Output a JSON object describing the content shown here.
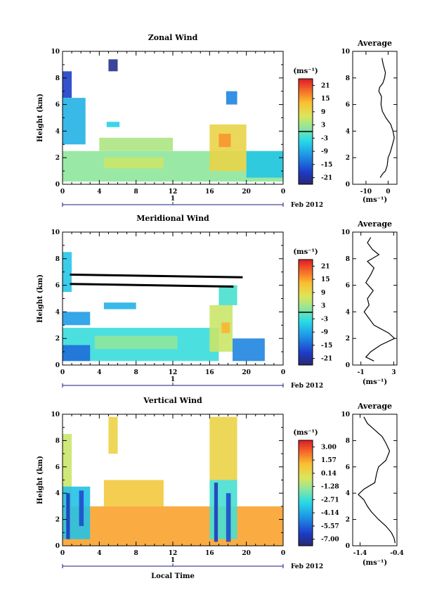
{
  "chart_data": [
    {
      "type": "heatmap",
      "title": "Zonal Wind",
      "ylabel": "Height (km)",
      "ylim": [
        0,
        10
      ],
      "yticks": [
        "0",
        "2",
        "4",
        "6",
        "8",
        "10"
      ],
      "xlim": [
        0,
        24
      ],
      "xticks": [
        "0",
        "4",
        "8",
        "12",
        "16",
        "20",
        "0"
      ],
      "date_marker": "1",
      "date_label": "Feb 2012",
      "colorbar": {
        "unit": "(ms⁻¹)",
        "ticks": [
          "21",
          "15",
          "9",
          "3",
          "-3",
          "-9",
          "-15",
          "-21"
        ],
        "range": [
          -24,
          24
        ],
        "zero_line": true
      },
      "patches": [
        {
          "x0": 0.0,
          "x1": 1.0,
          "y0": 6.5,
          "y1": 8.5,
          "v": -18
        },
        {
          "x0": 0.0,
          "x1": 2.5,
          "y0": 3.0,
          "y1": 6.5,
          "v": -8
        },
        {
          "x0": 0.0,
          "x1": 24.0,
          "y0": 0.2,
          "y1": 2.5,
          "v": 2
        },
        {
          "x0": 4.0,
          "x1": 12.0,
          "y0": 2.5,
          "y1": 3.5,
          "v": 4
        },
        {
          "x0": 5.0,
          "x1": 6.0,
          "y0": 8.5,
          "y1": 9.4,
          "v": -22
        },
        {
          "x0": 4.8,
          "x1": 6.2,
          "y0": 4.3,
          "y1": 4.7,
          "v": -5
        },
        {
          "x0": 16.0,
          "x1": 20.0,
          "y0": 1.0,
          "y1": 4.5,
          "v": 10
        },
        {
          "x0": 17.0,
          "x1": 18.3,
          "y0": 2.8,
          "y1": 3.8,
          "v": 16
        },
        {
          "x0": 17.8,
          "x1": 19.0,
          "y0": 6.0,
          "y1": 7.0,
          "v": -12
        },
        {
          "x0": 20.0,
          "x1": 24.0,
          "y0": 0.5,
          "y1": 2.5,
          "v": -6
        },
        {
          "x0": 4.5,
          "x1": 11.0,
          "y0": 1.2,
          "y1": 2.0,
          "v": 6
        }
      ]
    },
    {
      "type": "line",
      "title": "Average",
      "xlabel": "(ms⁻¹)",
      "xticks": [
        "-10",
        "0"
      ],
      "xlim": [
        -16,
        4
      ],
      "ylim": [
        0,
        10
      ],
      "yticks": [
        "0",
        "2",
        "4",
        "6",
        "8",
        "10"
      ],
      "x": [
        -3.6,
        -2.4,
        -1.2,
        -0.4,
        0.0,
        1.0,
        2.0,
        2.8,
        2.2,
        1.2,
        -1.0,
        -2.6,
        -3.2,
        -3.0,
        -4.2,
        -3.8,
        -2.4,
        -1.6,
        -1.2,
        -2.2,
        -2.8
      ],
      "y": [
        0.5,
        0.8,
        1.0,
        1.4,
        2.0,
        2.4,
        3.0,
        3.5,
        4.0,
        4.5,
        5.0,
        5.5,
        6.0,
        6.6,
        7.0,
        7.3,
        7.6,
        8.0,
        8.4,
        9.0,
        9.5
      ]
    },
    {
      "type": "heatmap",
      "title": "Meridional Wind",
      "ylabel": "Height (km)",
      "ylim": [
        0,
        10
      ],
      "yticks": [
        "0",
        "2",
        "4",
        "6",
        "8",
        "10"
      ],
      "xlim": [
        0,
        24
      ],
      "xticks": [
        "0",
        "4",
        "8",
        "12",
        "16",
        "20",
        "0"
      ],
      "date_marker": "1",
      "date_label": "Feb 2012",
      "colorbar": {
        "unit": "(ms⁻¹)",
        "ticks": [
          "21",
          "15",
          "9",
          "3",
          "-3",
          "-9",
          "-15",
          "-21"
        ],
        "range": [
          -24,
          24
        ],
        "zero_line": true
      },
      "patches": [
        {
          "x0": 0.0,
          "x1": 1.0,
          "y0": 5.5,
          "y1": 8.5,
          "v": -6
        },
        {
          "x0": 0.0,
          "x1": 3.0,
          "y0": 3.0,
          "y1": 4.0,
          "v": -10
        },
        {
          "x0": 0.0,
          "x1": 17.0,
          "y0": 0.3,
          "y1": 2.8,
          "v": -3
        },
        {
          "x0": 3.5,
          "x1": 12.5,
          "y0": 1.2,
          "y1": 2.2,
          "v": 2
        },
        {
          "x0": 16.0,
          "x1": 18.5,
          "y0": 1.0,
          "y1": 4.5,
          "v": 6
        },
        {
          "x0": 17.3,
          "x1": 18.2,
          "y0": 2.4,
          "y1": 3.2,
          "v": 14
        },
        {
          "x0": 17.0,
          "x1": 19.0,
          "y0": 4.5,
          "y1": 6.0,
          "v": -2
        },
        {
          "x0": 4.5,
          "x1": 8.0,
          "y0": 4.2,
          "y1": 4.7,
          "v": -8
        },
        {
          "x0": 18.5,
          "x1": 22.0,
          "y0": 0.3,
          "y1": 2.0,
          "v": -12
        },
        {
          "x0": 0.0,
          "x1": 3.0,
          "y0": 0.3,
          "y1": 1.5,
          "v": -14
        }
      ],
      "black_lines": [
        {
          "x0": 0.8,
          "y0": 6.8,
          "x1": 19.6,
          "y1": 6.6
        },
        {
          "x0": 0.8,
          "y0": 6.1,
          "x1": 18.6,
          "y1": 5.9
        }
      ]
    },
    {
      "type": "line",
      "title": "Average",
      "xlabel": "(ms⁻¹)",
      "xticks": [
        "-1",
        "3"
      ],
      "xlim": [
        -2,
        3.4
      ],
      "ylim": [
        0,
        10
      ],
      "yticks": [
        "0",
        "2",
        "4",
        "6",
        "8",
        "10"
      ],
      "x": [
        0.6,
        -0.4,
        0.2,
        1.4,
        3.1,
        2.4,
        0.6,
        0.0,
        -0.6,
        0.0,
        -0.2,
        0.5,
        -0.4,
        0.2,
        0.6,
        -0.2,
        1.2,
        0.4,
        -0.2,
        0.2
      ],
      "y": [
        0.3,
        0.6,
        1.0,
        1.5,
        2.0,
        2.4,
        3.0,
        3.5,
        4.0,
        4.5,
        5.0,
        5.6,
        6.2,
        6.8,
        7.3,
        7.8,
        8.3,
        8.7,
        9.2,
        9.6
      ]
    },
    {
      "type": "heatmap",
      "title": "Vertical Wind",
      "ylabel": "Height (km)",
      "xlabel": "Local Time",
      "ylim": [
        0,
        10
      ],
      "yticks": [
        "0",
        "2",
        "4",
        "6",
        "8",
        "10"
      ],
      "xlim": [
        0,
        24
      ],
      "xticks": [
        "0",
        "4",
        "8",
        "12",
        "16",
        "20",
        "0"
      ],
      "date_marker": "1",
      "date_label": "Feb 2012",
      "colorbar": {
        "unit": "(ms⁻¹)",
        "ticks": [
          "3.00",
          "1.57",
          "0.14",
          "-1.28",
          "-2.71",
          "-4.14",
          "-5.57",
          "-7.00"
        ],
        "range": [
          -7.7,
          3.7
        ],
        "zero_line": false
      },
      "patches": [
        {
          "x0": 0.0,
          "x1": 24.0,
          "y0": 0.0,
          "y1": 3.0,
          "v": 1.6
        },
        {
          "x0": 0.0,
          "x1": 1.0,
          "y0": 3.0,
          "y1": 8.5,
          "v": -0.6
        },
        {
          "x0": 4.5,
          "x1": 11.0,
          "y0": 3.0,
          "y1": 5.0,
          "v": 0.8
        },
        {
          "x0": 0.0,
          "x1": 3.0,
          "y0": 0.5,
          "y1": 4.5,
          "v": -3.5
        },
        {
          "x0": 0.4,
          "x1": 0.8,
          "y0": 0.5,
          "y1": 4.0,
          "v": -6.5
        },
        {
          "x0": 1.8,
          "x1": 2.3,
          "y0": 1.5,
          "y1": 4.2,
          "v": -6.0
        },
        {
          "x0": 16.0,
          "x1": 19.0,
          "y0": 0.5,
          "y1": 5.0,
          "v": -2.5
        },
        {
          "x0": 16.5,
          "x1": 16.9,
          "y0": 0.3,
          "y1": 4.8,
          "v": -6.5
        },
        {
          "x0": 17.8,
          "x1": 18.3,
          "y0": 0.3,
          "y1": 4.0,
          "v": -6.0
        },
        {
          "x0": 16.0,
          "x1": 19.0,
          "y0": 5.0,
          "y1": 9.8,
          "v": 0.4
        },
        {
          "x0": 5.0,
          "x1": 6.0,
          "y0": 7.0,
          "y1": 9.8,
          "v": 0.5
        }
      ]
    },
    {
      "type": "line",
      "title": "Average",
      "xlabel": "(ms⁻¹)",
      "xticks": [
        "-1.4",
        "-0.4"
      ],
      "xlim": [
        -1.6,
        -0.4
      ],
      "ylim": [
        0,
        10
      ],
      "yticks": [
        "0",
        "2",
        "4",
        "6",
        "8",
        "10"
      ],
      "x": [
        -0.45,
        -0.48,
        -0.55,
        -0.7,
        -0.9,
        -1.1,
        -1.2,
        -1.3,
        -1.45,
        -1.3,
        -1.0,
        -0.95,
        -0.9,
        -0.7,
        -0.6,
        -0.7,
        -0.8,
        -1.0,
        -1.2,
        -1.3
      ],
      "y": [
        0.2,
        0.6,
        1.0,
        1.5,
        2.0,
        2.6,
        3.0,
        3.5,
        3.9,
        4.3,
        4.8,
        5.5,
        6.0,
        6.5,
        7.2,
        7.8,
        8.3,
        8.8,
        9.3,
        9.8
      ]
    }
  ]
}
